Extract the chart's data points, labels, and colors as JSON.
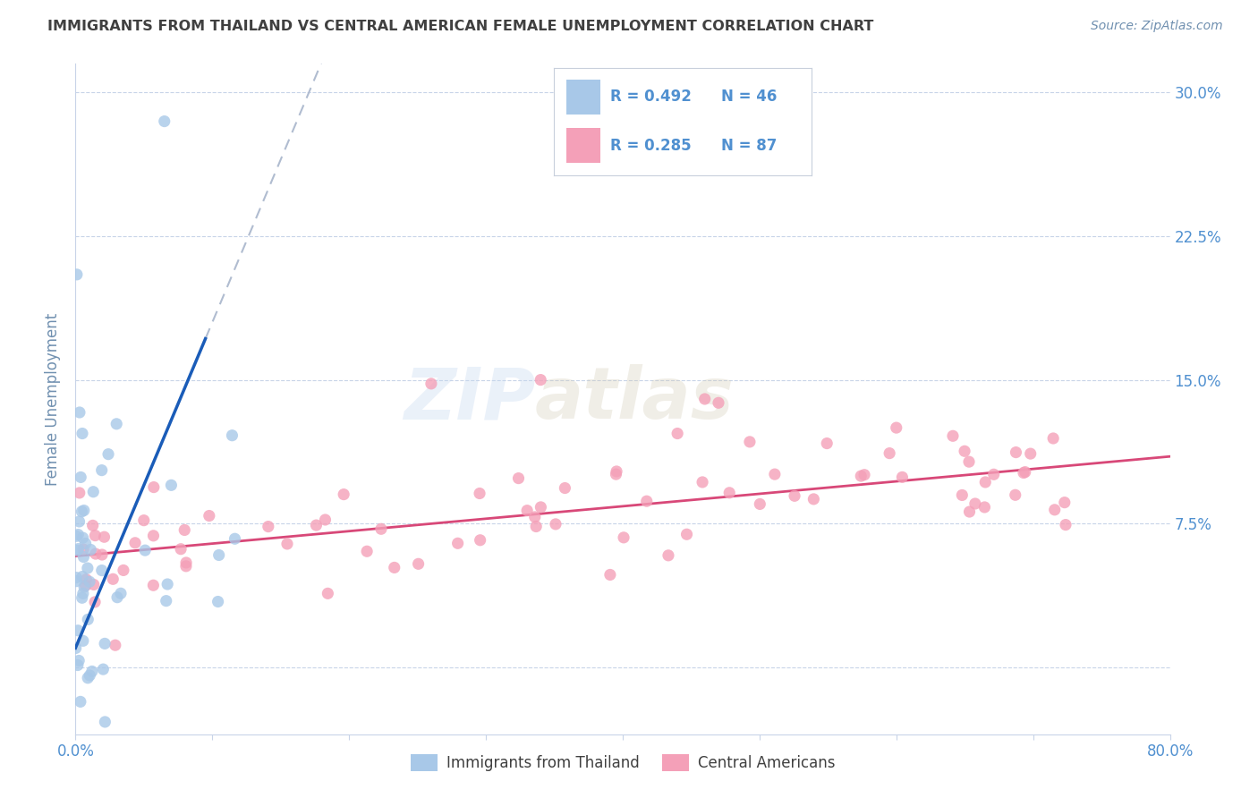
{
  "title": "IMMIGRANTS FROM THAILAND VS CENTRAL AMERICAN FEMALE UNEMPLOYMENT CORRELATION CHART",
  "source": "Source: ZipAtlas.com",
  "ylabel": "Female Unemployment",
  "xlim": [
    0,
    0.8
  ],
  "ylim": [
    -0.035,
    0.315
  ],
  "yticks": [
    0.0,
    0.075,
    0.15,
    0.225,
    0.3
  ],
  "ytick_labels": [
    "",
    "7.5%",
    "15.0%",
    "22.5%",
    "30.0%"
  ],
  "xticks": [
    0.0,
    0.1,
    0.2,
    0.3,
    0.4,
    0.5,
    0.6,
    0.7,
    0.8
  ],
  "xtick_labels": [
    "0.0%",
    "",
    "",
    "",
    "",
    "",
    "",
    "",
    "80.0%"
  ],
  "series1_color": "#a8c8e8",
  "series2_color": "#f4a0b8",
  "trendline1_color": "#1a5cb8",
  "trendline2_color": "#d84878",
  "r1": 0.492,
  "n1": 46,
  "r2": 0.285,
  "n2": 87,
  "watermark_zip": "ZIP",
  "watermark_atlas": "atlas",
  "background_color": "#ffffff",
  "grid_color": "#c8d4e8",
  "title_color": "#404040",
  "axis_label_color": "#7090b0",
  "tick_label_color": "#5090d0",
  "legend_label1": "Immigrants from Thailand",
  "legend_label2": "Central Americans"
}
